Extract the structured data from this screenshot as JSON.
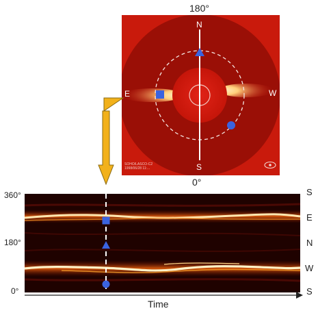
{
  "coronagraph": {
    "top_angle": "180°",
    "bottom_angle": "0°",
    "dir_north": "N",
    "dir_south": "S",
    "dir_east": "E",
    "dir_west": "W",
    "stamp_line1": "SOHO/LASCO-C2",
    "stamp_line2": "1998/06/28 11:..."
  },
  "stackplot": {
    "y_top": "360°",
    "y_mid": "180°",
    "y_bottom": "0°",
    "right_labels": [
      "S",
      "E",
      "N",
      "W",
      "S"
    ],
    "x_label": "Time"
  },
  "colors": {
    "occulter": "#8e0d05",
    "disk": "#d31b10",
    "marker_blue": "#3a63e0",
    "arrow_gold": "#f2b11b",
    "stack_bg": "#1f0200",
    "streamer_bright": "#fff2c8"
  }
}
